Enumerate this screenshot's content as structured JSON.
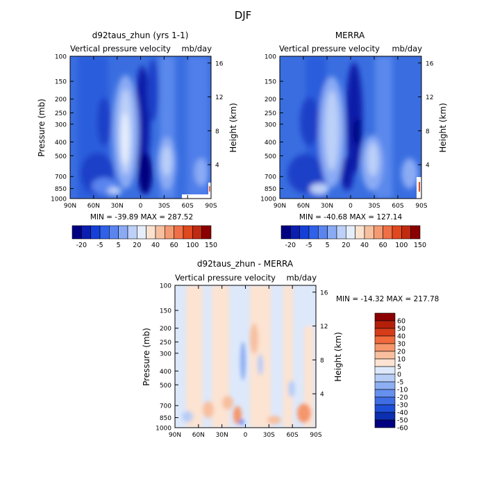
{
  "figure_title": "DJF",
  "chart_data": [
    {
      "type": "heatmap",
      "title": "d92taus_zhun (yrs 1-1)",
      "subtitle_left": "Vertical pressure velocity",
      "subtitle_right": "mb/day",
      "ylabel": "Pressure (mb)",
      "ylabel_right": "Height (km)",
      "x_ticks": [
        "90N",
        "60N",
        "30N",
        "0",
        "30S",
        "60S",
        "90S"
      ],
      "y_ticks": [
        "100",
        "150",
        "200",
        "250",
        "300",
        "400",
        "500",
        "700",
        "850",
        "1000"
      ],
      "y_ticks_right": [
        "16",
        "12",
        "8",
        "4"
      ],
      "stats": "MIN = -39.89   MAX = 287.52",
      "colorbar_labels": [
        "-20",
        "-5",
        "5",
        "20",
        "40",
        "60",
        "100",
        "150"
      ],
      "colorbar_orientation": "horizontal"
    },
    {
      "type": "heatmap",
      "title": "MERRA",
      "subtitle_left": "Vertical pressure velocity",
      "subtitle_right": "mb/day",
      "ylabel_right": "Height (km)",
      "x_ticks": [
        "90N",
        "60N",
        "30N",
        "0",
        "30S",
        "60S",
        "90S"
      ],
      "y_ticks": [
        "100",
        "150",
        "200",
        "250",
        "300",
        "400",
        "500",
        "700",
        "850",
        "1000"
      ],
      "y_ticks_right": [
        "16",
        "12",
        "8",
        "4"
      ],
      "stats": "MIN = -40.68   MAX = 127.14",
      "colorbar_labels": [
        "-20",
        "-5",
        "5",
        "20",
        "40",
        "60",
        "100",
        "150"
      ],
      "colorbar_orientation": "horizontal"
    },
    {
      "type": "heatmap",
      "title": "d92taus_zhun - MERRA",
      "subtitle_left": "Vertical pressure velocity",
      "subtitle_right": "mb/day",
      "ylabel": "Pressure (mb)",
      "ylabel_right": "Height (km)",
      "x_ticks": [
        "90N",
        "60N",
        "30N",
        "0",
        "30S",
        "60S",
        "90S"
      ],
      "y_ticks": [
        "100",
        "150",
        "200",
        "250",
        "300",
        "400",
        "500",
        "700",
        "850",
        "1000"
      ],
      "y_ticks_right": [
        "16",
        "12",
        "8",
        "4"
      ],
      "stats": "MIN = -14.32   MAX = 217.78",
      "colorbar_labels": [
        "60",
        "50",
        "40",
        "30",
        "20",
        "10",
        "5",
        "0",
        "-5",
        "-10",
        "-20",
        "-30",
        "-40",
        "-50",
        "-60"
      ],
      "colorbar_orientation": "vertical"
    }
  ],
  "colors": {
    "scale_top": [
      "#000080",
      "#0a1fb0",
      "#1540d8",
      "#2f62e8",
      "#5a85ef",
      "#8aaaf4",
      "#bcd0f8",
      "#e6eefc",
      "#fbe2cf",
      "#f6c0a0",
      "#f39a72",
      "#ef7047",
      "#e0481f",
      "#c02a10",
      "#8b0000"
    ],
    "scale_diff": [
      "#8b0000",
      "#b51f0a",
      "#d63c1a",
      "#f06a3c",
      "#f5966c",
      "#f8bf9f",
      "#fce3d2",
      "#dde8fb",
      "#b8cdf6",
      "#8daef2",
      "#6690ee",
      "#3f6de4",
      "#1d4ed6",
      "#0b2fb0",
      "#000080"
    ]
  }
}
